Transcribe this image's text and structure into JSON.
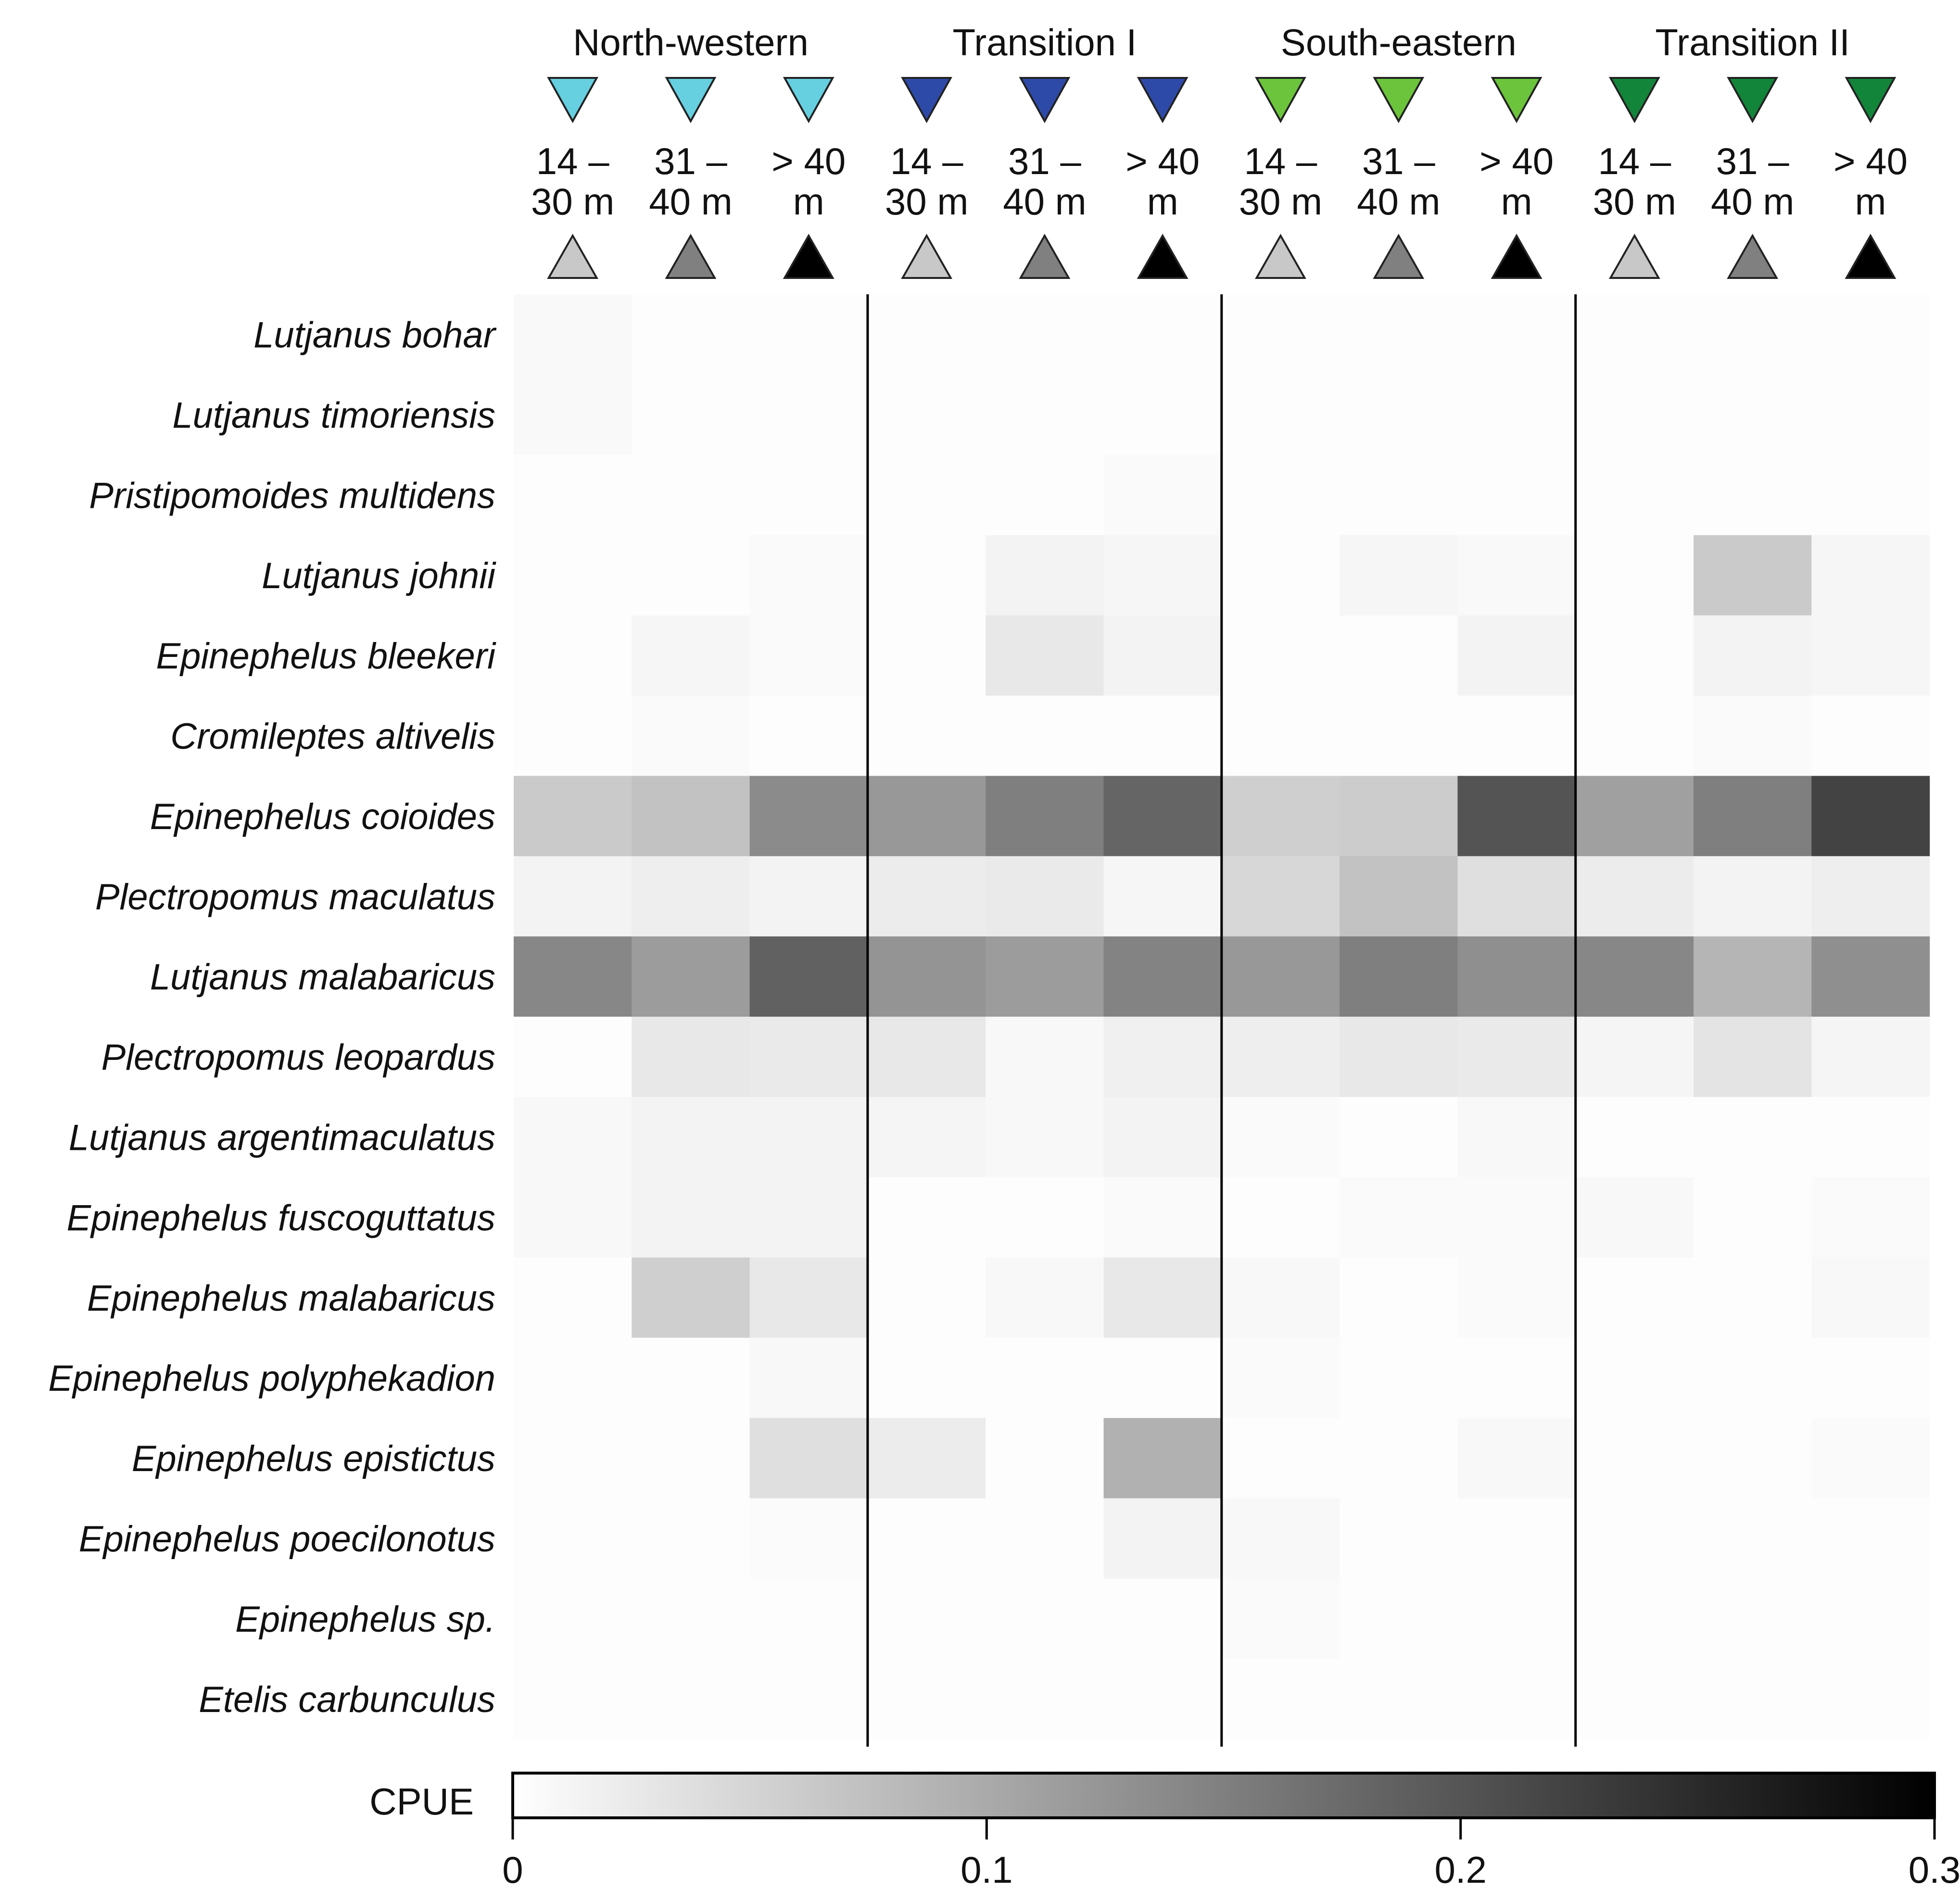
{
  "chart_data": {
    "type": "heatmap",
    "regions": [
      {
        "name": "North-western",
        "color": "#66cfe0"
      },
      {
        "name": "Transition I",
        "color": "#2e4aa8"
      },
      {
        "name": "South-eastern",
        "color": "#6cc43c"
      },
      {
        "name": "Transition II",
        "color": "#13853a"
      }
    ],
    "depth_labels": [
      "14 –\n30 m",
      "31 –\n40 m",
      "> 40\nm"
    ],
    "depth_marker_colors": [
      "#c8c8c8",
      "#808080",
      "#000000"
    ],
    "species": [
      "Lutjanus bohar",
      "Lutjanus timoriensis",
      "Pristipomoides multidens",
      "Lutjanus johnii",
      "Epinephelus bleekeri",
      "Cromileptes altivelis",
      "Epinephelus coioides",
      "Plectropomus maculatus",
      "Lutjanus malabaricus",
      "Plectropomus leopardus",
      "Lutjanus argentimaculatus",
      "Epinephelus fuscoguttatus",
      "Epinephelus malabaricus",
      "Epinephelus polyphekadion",
      "Epinephelus epistictus",
      "Epinephelus poecilonotus",
      "Epinephelus sp.",
      "Etelis carbunculus"
    ],
    "values": [
      [
        0.005,
        0,
        0,
        0,
        0,
        0,
        0,
        0,
        0,
        0,
        0,
        0
      ],
      [
        0.005,
        0,
        0,
        0,
        0,
        0,
        0,
        0,
        0,
        0,
        0,
        0
      ],
      [
        0,
        0,
        0,
        0,
        0,
        0.003,
        0,
        0,
        0,
        0,
        0,
        0
      ],
      [
        0,
        0,
        0.003,
        0,
        0.012,
        0.008,
        0,
        0.008,
        0.005,
        0,
        0.06,
        0.008
      ],
      [
        0,
        0.008,
        0.003,
        0,
        0.025,
        0.012,
        0,
        0,
        0.012,
        0,
        0.012,
        0.008
      ],
      [
        0,
        0.004,
        0,
        0,
        0,
        0,
        0,
        0,
        0,
        0,
        0.003,
        0
      ],
      [
        0.06,
        0.07,
        0.135,
        0.12,
        0.15,
        0.18,
        0.055,
        0.058,
        0.2,
        0.11,
        0.15,
        0.22
      ],
      [
        0.012,
        0.018,
        0.012,
        0.02,
        0.022,
        0.008,
        0.045,
        0.07,
        0.035,
        0.02,
        0.012,
        0.018
      ],
      [
        0.14,
        0.115,
        0.185,
        0.125,
        0.115,
        0.145,
        0.12,
        0.15,
        0.13,
        0.14,
        0.085,
        0.13
      ],
      [
        0,
        0.025,
        0.022,
        0.025,
        0.006,
        0.015,
        0.018,
        0.025,
        0.022,
        0.01,
        0.03,
        0.01
      ],
      [
        0.006,
        0.012,
        0.012,
        0.01,
        0.006,
        0.012,
        0.003,
        0,
        0.006,
        0,
        0,
        0
      ],
      [
        0.006,
        0.012,
        0.012,
        0,
        0,
        0.003,
        0,
        0.003,
        0.003,
        0.006,
        0,
        0.003
      ],
      [
        0,
        0.055,
        0.025,
        0,
        0.006,
        0.025,
        0.006,
        0,
        0.003,
        0,
        0,
        0.006
      ],
      [
        0,
        0,
        0.006,
        0,
        0,
        0,
        0.003,
        0,
        0,
        0,
        0,
        0
      ],
      [
        0,
        0,
        0.035,
        0.02,
        0,
        0.09,
        0,
        0,
        0.006,
        0,
        0,
        0.003
      ],
      [
        0,
        0,
        0.002,
        0,
        0,
        0.012,
        0.006,
        0,
        0,
        0,
        0,
        0
      ],
      [
        0,
        0,
        0,
        0,
        0,
        0,
        0.004,
        0,
        0,
        0,
        0,
        0
      ],
      [
        0,
        0,
        0,
        0,
        0,
        0,
        0,
        0,
        0,
        0,
        0,
        0
      ]
    ],
    "colorbar": {
      "label": "CPUE",
      "range": [
        0,
        0.3
      ],
      "ticks": [
        0,
        0.1,
        0.2,
        0.3
      ],
      "tick_labels": [
        "0",
        "0.1",
        "0.2",
        "0.3"
      ]
    }
  }
}
